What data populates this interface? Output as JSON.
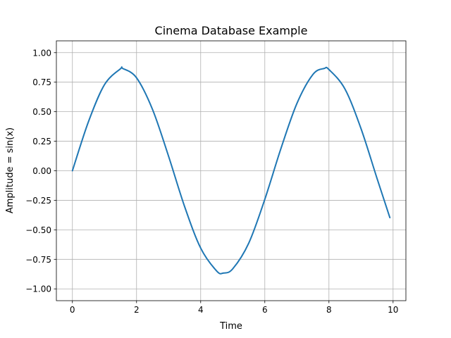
{
  "chart_data": {
    "type": "line",
    "title": "Cinema Database Example",
    "xlabel": "Time",
    "ylabel": "Amplitude = sin(x)",
    "xlim": [
      -0.5,
      10.4
    ],
    "ylim": [
      -1.1,
      1.1
    ],
    "xticks": [
      0,
      2,
      4,
      6,
      8,
      10
    ],
    "xtick_labels": [
      "0",
      "2",
      "4",
      "6",
      "8",
      "10"
    ],
    "yticks": [
      -1.0,
      -0.75,
      -0.5,
      -0.25,
      0.0,
      0.25,
      0.5,
      0.75,
      1.0
    ],
    "ytick_labels": [
      "−1.00",
      "−0.75",
      "−0.50",
      "−0.25",
      "0.00",
      "0.25",
      "0.50",
      "0.75",
      "1.00"
    ],
    "grid": true,
    "series": [
      {
        "color": "#1f77b4",
        "x": [
          0.0,
          0.5,
          1.0,
          1.5,
          1.57,
          2.0,
          2.5,
          3.0,
          3.5,
          4.0,
          4.5,
          4.71,
          5.0,
          5.5,
          6.0,
          6.5,
          7.0,
          7.5,
          7.85,
          8.0,
          8.5,
          9.0,
          9.5,
          9.9
        ],
        "y": [
          0.0,
          0.415,
          0.729,
          0.864,
          0.866,
          0.787,
          0.518,
          0.122,
          -0.304,
          -0.655,
          -0.849,
          -0.866,
          -0.83,
          -0.612,
          -0.242,
          0.186,
          0.569,
          0.815,
          0.866,
          0.857,
          0.692,
          0.357,
          -0.065,
          -0.397
        ]
      }
    ]
  }
}
